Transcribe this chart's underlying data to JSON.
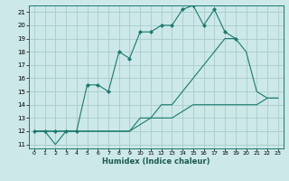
{
  "xlabel": "Humidex (Indice chaleur)",
  "xlim": [
    -0.5,
    23.5
  ],
  "ylim": [
    10.7,
    21.5
  ],
  "yticks": [
    11,
    12,
    13,
    14,
    15,
    16,
    17,
    18,
    19,
    20,
    21
  ],
  "xticks": [
    0,
    1,
    2,
    3,
    4,
    5,
    6,
    7,
    8,
    9,
    10,
    11,
    12,
    13,
    14,
    15,
    16,
    17,
    18,
    19,
    20,
    21,
    22,
    23
  ],
  "background_color": "#cce8e8",
  "grid_color": "#aacccc",
  "line_color": "#1a7a6e",
  "line1_x": [
    0,
    1,
    2,
    3,
    4,
    5,
    6,
    7,
    8,
    9,
    10,
    11,
    12,
    13,
    14,
    15,
    16,
    17,
    18,
    19,
    20,
    21,
    22,
    23
  ],
  "line1_y": [
    12,
    12,
    11,
    12,
    12,
    12,
    12,
    12,
    12,
    12,
    12.5,
    13,
    13,
    13,
    13.5,
    14,
    14,
    14,
    14,
    14,
    14,
    14,
    14.5,
    14.5
  ],
  "line2_x": [
    0,
    1,
    2,
    3,
    4,
    5,
    6,
    7,
    8,
    9,
    10,
    11,
    12,
    13,
    14,
    15,
    16,
    17,
    18,
    19,
    20,
    21,
    22,
    23
  ],
  "line2_y": [
    12,
    12,
    12,
    12,
    12,
    12,
    12,
    12,
    12,
    12,
    13,
    13,
    14,
    14,
    15,
    16,
    17,
    18,
    19,
    19,
    18,
    15,
    14.5,
    14.5
  ],
  "line3_x": [
    0,
    1,
    2,
    3,
    4,
    5,
    6,
    7,
    8,
    9,
    10,
    11,
    12,
    13,
    14,
    15,
    16,
    17,
    18,
    19
  ],
  "line3_y": [
    12,
    12,
    12,
    12,
    12,
    15.5,
    15.5,
    15,
    18,
    17.5,
    19.5,
    19.5,
    20,
    20,
    21.2,
    21.5,
    20,
    21.2,
    19.5,
    19
  ]
}
